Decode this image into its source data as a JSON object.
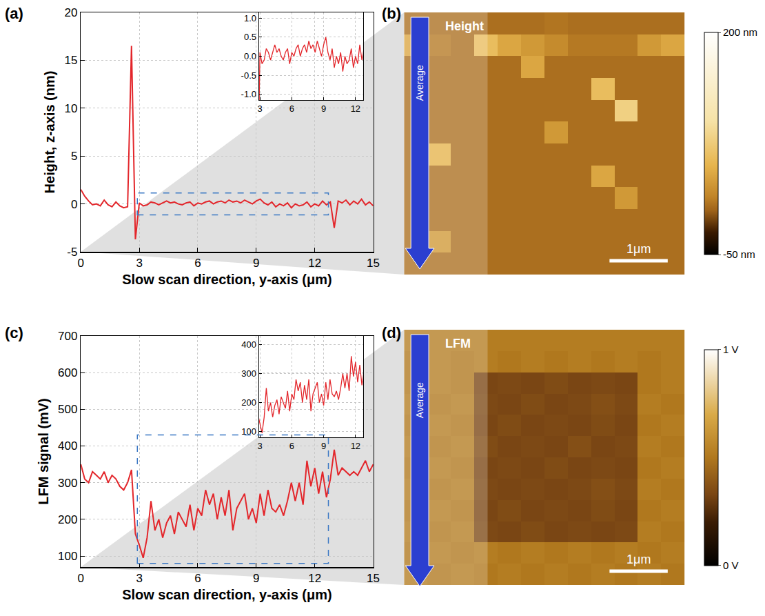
{
  "chart_data": [
    {
      "panel_label": "(a)",
      "type": "line",
      "color": "#e3262b",
      "grid": true,
      "x_label": "Slow scan direction, y-axis (μm)",
      "y_label": "Height, z-axis (nm)",
      "xlim": [
        0,
        15
      ],
      "xticks": [
        0,
        3,
        6,
        9,
        12,
        15
      ],
      "ylim": [
        -5,
        20
      ],
      "yticks": [
        -5,
        0,
        5,
        10,
        15,
        20
      ],
      "x": [
        0,
        0.2,
        0.4,
        0.6,
        0.8,
        1,
        1.2,
        1.4,
        1.6,
        1.8,
        2,
        2.2,
        2.4,
        2.6,
        2.8,
        3,
        3.2,
        3.4,
        3.6,
        3.8,
        4,
        4.2,
        4.4,
        4.6,
        4.8,
        5,
        5.2,
        5.4,
        5.6,
        5.8,
        6,
        6.2,
        6.4,
        6.6,
        6.8,
        7,
        7.2,
        7.4,
        7.6,
        7.8,
        8,
        8.2,
        8.4,
        8.6,
        8.8,
        9,
        9.2,
        9.4,
        9.6,
        9.8,
        10,
        10.2,
        10.4,
        10.6,
        10.8,
        11,
        11.2,
        11.4,
        11.6,
        11.8,
        12,
        12.2,
        12.4,
        12.6,
        12.8,
        13,
        13.2,
        13.4,
        13.6,
        13.8,
        14,
        14.2,
        14.4,
        14.6,
        14.8,
        15
      ],
      "values": [
        1.5,
        0.8,
        0.3,
        -0.1,
        0.0,
        -0.2,
        0.4,
        -0.1,
        -0.3,
        0.2,
        -0.2,
        -0.4,
        -0.3,
        16.5,
        -3.7,
        0.1,
        -0.2,
        -0.1,
        0.2,
        0.1,
        -0.1,
        0.1,
        0.3,
        0.1,
        0.2,
        0.0,
        -0.1,
        0.1,
        0.2,
        -0.2,
        0.1,
        0.0,
        0.2,
        0.3,
        0.0,
        0.2,
        0.3,
        0.1,
        0.4,
        0.2,
        0.3,
        0.1,
        0.4,
        0.2,
        0.0,
        0.3,
        0.5,
        0.1,
        -0.1,
        0.2,
        -0.3,
        0.0,
        -0.2,
        0.1,
        -0.4,
        0.0,
        -0.2,
        -0.1,
        0.2,
        -0.3,
        0.0,
        -0.2,
        0.3,
        -0.1,
        0.2,
        -2.5,
        0.3,
        0.1,
        0.4,
        -0.1,
        0.3,
        0.0,
        0.5,
        -0.1,
        0.2,
        -0.2
      ],
      "inset": {
        "xlim": [
          2.9,
          12.7
        ],
        "xticks": [
          3,
          6,
          9,
          12
        ],
        "ylim": [
          -1.15,
          1.15
        ],
        "yticks": [
          {
            "value": -1,
            "label": "-1.0"
          },
          -0.5,
          {
            "value": 0,
            "label": "0.0"
          },
          0.5,
          {
            "value": 1,
            "label": "1.0"
          }
        ]
      }
    },
    {
      "panel_label": "(c)",
      "type": "line",
      "color": "#e3262b",
      "grid": true,
      "x_label": "Slow scan direction, y-axis (μm)",
      "y_label": "LFM signal (mV)",
      "xlim": [
        0,
        15
      ],
      "xticks": [
        0,
        3,
        6,
        9,
        12,
        15
      ],
      "ylim": [
        70,
        700
      ],
      "yticks": [
        100,
        200,
        300,
        400,
        500,
        600,
        700
      ],
      "x": [
        0,
        0.2,
        0.4,
        0.6,
        0.8,
        1,
        1.2,
        1.4,
        1.6,
        1.8,
        2,
        2.2,
        2.4,
        2.6,
        2.8,
        3,
        3.2,
        3.4,
        3.6,
        3.8,
        4,
        4.2,
        4.4,
        4.6,
        4.8,
        5,
        5.2,
        5.4,
        5.6,
        5.8,
        6,
        6.2,
        6.4,
        6.6,
        6.8,
        7,
        7.2,
        7.4,
        7.6,
        7.8,
        8,
        8.2,
        8.4,
        8.6,
        8.8,
        9,
        9.2,
        9.4,
        9.6,
        9.8,
        10,
        10.2,
        10.4,
        10.6,
        10.8,
        11,
        11.2,
        11.4,
        11.6,
        11.8,
        12,
        12.2,
        12.4,
        12.6,
        12.8,
        13,
        13.2,
        13.4,
        13.6,
        13.8,
        14,
        14.2,
        14.4,
        14.6,
        14.8,
        15
      ],
      "values": [
        350,
        310,
        300,
        330,
        320,
        310,
        330,
        300,
        320,
        310,
        290,
        280,
        300,
        335,
        160,
        130,
        95,
        150,
        250,
        170,
        200,
        150,
        190,
        210,
        160,
        220,
        200,
        180,
        240,
        170,
        230,
        210,
        280,
        240,
        270,
        200,
        260,
        210,
        280,
        170,
        230,
        250,
        270,
        200,
        230,
        190,
        270,
        210,
        280,
        230,
        220,
        240,
        210,
        250,
        300,
        250,
        300,
        240,
        360,
        290,
        340,
        270,
        330,
        260,
        310,
        390,
        320,
        340,
        330,
        320,
        330,
        320,
        340,
        360,
        330,
        350
      ],
      "inset": {
        "xlim": [
          2.9,
          12.7
        ],
        "xticks": [
          3,
          6,
          9,
          12
        ],
        "ylim": [
          80,
          430
        ],
        "yticks": [
          100,
          200,
          300,
          400
        ]
      }
    },
    {
      "panel_label": "(b)",
      "type": "heatmap",
      "label": "Height",
      "arrow_label": "Average",
      "scale_bar": "1μm",
      "z": [
        [
          5,
          5,
          5,
          5,
          5,
          5,
          8,
          5,
          5,
          5,
          5,
          5
        ],
        [
          40,
          10,
          5,
          60,
          40,
          30,
          20,
          10,
          10,
          10,
          30,
          40
        ],
        [
          5,
          5,
          5,
          5,
          5,
          40,
          5,
          5,
          5,
          5,
          5,
          5
        ],
        [
          5,
          5,
          5,
          5,
          5,
          5,
          5,
          5,
          60,
          5,
          5,
          5
        ],
        [
          5,
          5,
          5,
          5,
          5,
          5,
          5,
          5,
          5,
          80,
          5,
          5
        ],
        [
          5,
          5,
          5,
          5,
          5,
          5,
          30,
          5,
          5,
          5,
          5,
          5
        ],
        [
          5,
          50,
          5,
          5,
          5,
          5,
          5,
          5,
          5,
          5,
          5,
          5
        ],
        [
          5,
          5,
          5,
          5,
          5,
          5,
          5,
          5,
          40,
          5,
          5,
          5
        ],
        [
          5,
          5,
          5,
          5,
          5,
          5,
          5,
          5,
          5,
          30,
          5,
          5
        ],
        [
          5,
          5,
          5,
          5,
          5,
          5,
          5,
          5,
          5,
          5,
          5,
          5
        ],
        [
          5,
          30,
          5,
          5,
          5,
          5,
          5,
          5,
          5,
          5,
          5,
          5
        ],
        [
          5,
          5,
          5,
          5,
          5,
          5,
          5,
          5,
          5,
          5,
          5,
          5
        ]
      ],
      "colorbar": {
        "range": [
          -50,
          200
        ],
        "ticks": [
          {
            "value": -50,
            "label": "-50 nm"
          },
          {
            "value": 200,
            "label": "200 nm"
          }
        ]
      }
    },
    {
      "panel_label": "(d)",
      "type": "heatmap",
      "label": "LFM",
      "arrow_label": "Average",
      "scale_bar": "1μm",
      "z": [
        [
          0.52,
          0.52,
          0.52,
          0.52,
          0.52,
          0.52,
          0.52,
          0.52,
          0.52,
          0.52,
          0.52,
          0.52
        ],
        [
          0.5,
          0.52,
          0.5,
          0.52,
          0.5,
          0.52,
          0.5,
          0.52,
          0.5,
          0.52,
          0.5,
          0.52
        ],
        [
          0.5,
          0.52,
          0.5,
          0.33,
          0.34,
          0.33,
          0.35,
          0.33,
          0.34,
          0.33,
          0.5,
          0.52
        ],
        [
          0.52,
          0.5,
          0.52,
          0.34,
          0.33,
          0.35,
          0.33,
          0.34,
          0.36,
          0.34,
          0.52,
          0.5
        ],
        [
          0.5,
          0.52,
          0.5,
          0.33,
          0.35,
          0.33,
          0.34,
          0.33,
          0.35,
          0.33,
          0.5,
          0.52
        ],
        [
          0.52,
          0.5,
          0.52,
          0.35,
          0.33,
          0.34,
          0.33,
          0.36,
          0.33,
          0.34,
          0.52,
          0.5
        ],
        [
          0.5,
          0.52,
          0.5,
          0.33,
          0.34,
          0.33,
          0.35,
          0.33,
          0.34,
          0.33,
          0.5,
          0.52
        ],
        [
          0.52,
          0.5,
          0.52,
          0.34,
          0.33,
          0.34,
          0.33,
          0.34,
          0.36,
          0.34,
          0.52,
          0.5
        ],
        [
          0.5,
          0.52,
          0.5,
          0.33,
          0.35,
          0.33,
          0.34,
          0.33,
          0.35,
          0.33,
          0.5,
          0.52
        ],
        [
          0.52,
          0.5,
          0.52,
          0.34,
          0.33,
          0.35,
          0.33,
          0.34,
          0.33,
          0.34,
          0.52,
          0.5
        ],
        [
          0.5,
          0.52,
          0.5,
          0.52,
          0.5,
          0.52,
          0.5,
          0.52,
          0.5,
          0.52,
          0.5,
          0.52
        ],
        [
          0.52,
          0.5,
          0.52,
          0.5,
          0.52,
          0.5,
          0.52,
          0.5,
          0.52,
          0.5,
          0.52,
          0.5
        ]
      ],
      "colorbar": {
        "range": [
          0,
          1
        ],
        "ticks": [
          {
            "value": 0,
            "label": "0 V"
          },
          {
            "value": 1,
            "label": "1 V"
          }
        ]
      }
    }
  ]
}
